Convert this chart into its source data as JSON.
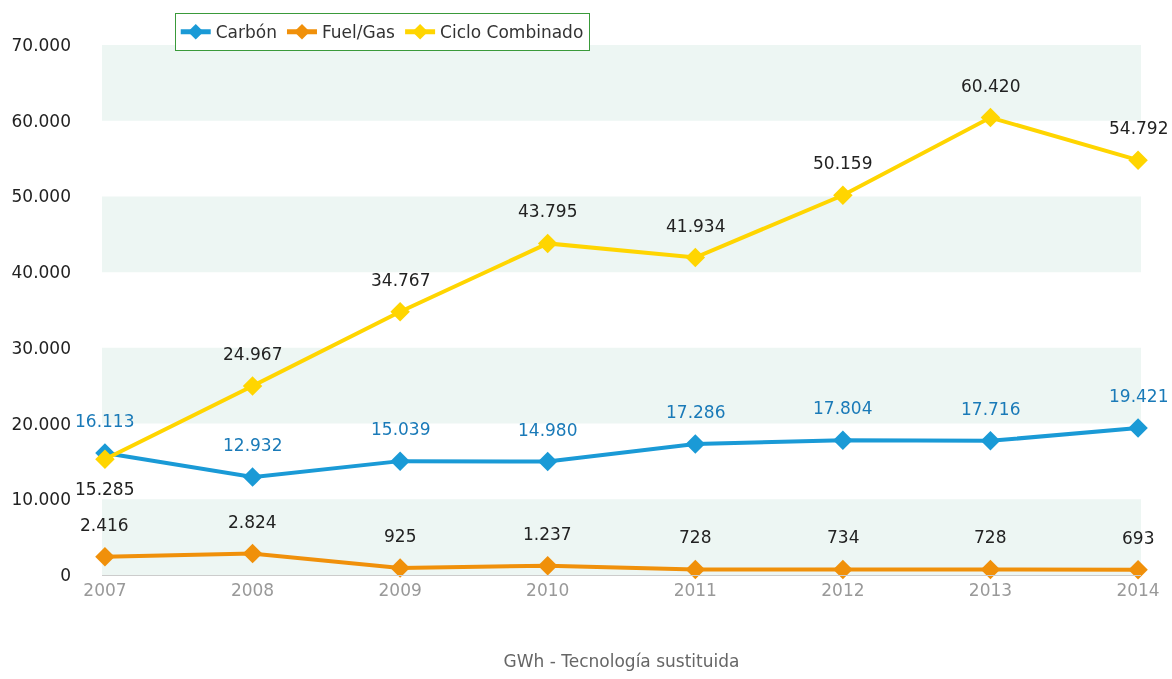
{
  "chart_data": {
    "type": "line",
    "xlabel": "GWh - Tecnología sustituida",
    "categories": [
      "2007",
      "2008",
      "2009",
      "2010",
      "2011",
      "2012",
      "2013",
      "2014"
    ],
    "series": [
      {
        "name": "Carbón",
        "color": "#1a9ad6",
        "values": [
          16113,
          12932,
          15039,
          14980,
          17286,
          17804,
          17716,
          19421
        ],
        "value_labels": [
          "16.113",
          "12.932",
          "15.039",
          "14.980",
          "17.286",
          "17.804",
          "17.716",
          "19.421"
        ]
      },
      {
        "name": "Fuel/Gas",
        "color": "#f0900a",
        "values": [
          2416,
          2824,
          925,
          1237,
          728,
          734,
          728,
          693
        ],
        "value_labels": [
          "2.416",
          "2.824",
          "925",
          "1.237",
          "728",
          "734",
          "728",
          "693"
        ]
      },
      {
        "name": "Ciclo Combinado",
        "color": "#ffd500",
        "values": [
          15285,
          24967,
          34767,
          43795,
          41934,
          50159,
          60420,
          54792
        ],
        "value_labels": [
          "15.285",
          "24.967",
          "34.767",
          "43.795",
          "41.934",
          "50.159",
          "60.420",
          "54.792"
        ]
      }
    ],
    "ylim": [
      0,
      70000
    ],
    "yticks": [
      0,
      {
        "value": 10000,
        "label": "10.000"
      },
      {
        "value": 20000,
        "label": "20.000"
      },
      {
        "value": 30000,
        "label": "30.000"
      },
      {
        "value": 40000,
        "label": "40.000"
      },
      {
        "value": 50000,
        "label": "50.000"
      },
      {
        "value": 60000,
        "label": "60.000"
      },
      {
        "value": 70000,
        "label": "70.000"
      }
    ],
    "bands": [
      {
        "axis": "y",
        "from": 0,
        "to": 10000,
        "color": "#edf6f3"
      },
      {
        "axis": "y",
        "from": 20000,
        "to": 30000,
        "color": "#edf6f3"
      },
      {
        "axis": "y",
        "from": 40000,
        "to": 50000,
        "color": "#edf6f3"
      },
      {
        "axis": "y",
        "from": 60000,
        "to": 70000,
        "color": "#edf6f3"
      }
    ],
    "grid": false,
    "legend": "top",
    "marker": "diamond",
    "line_style": "solid"
  }
}
